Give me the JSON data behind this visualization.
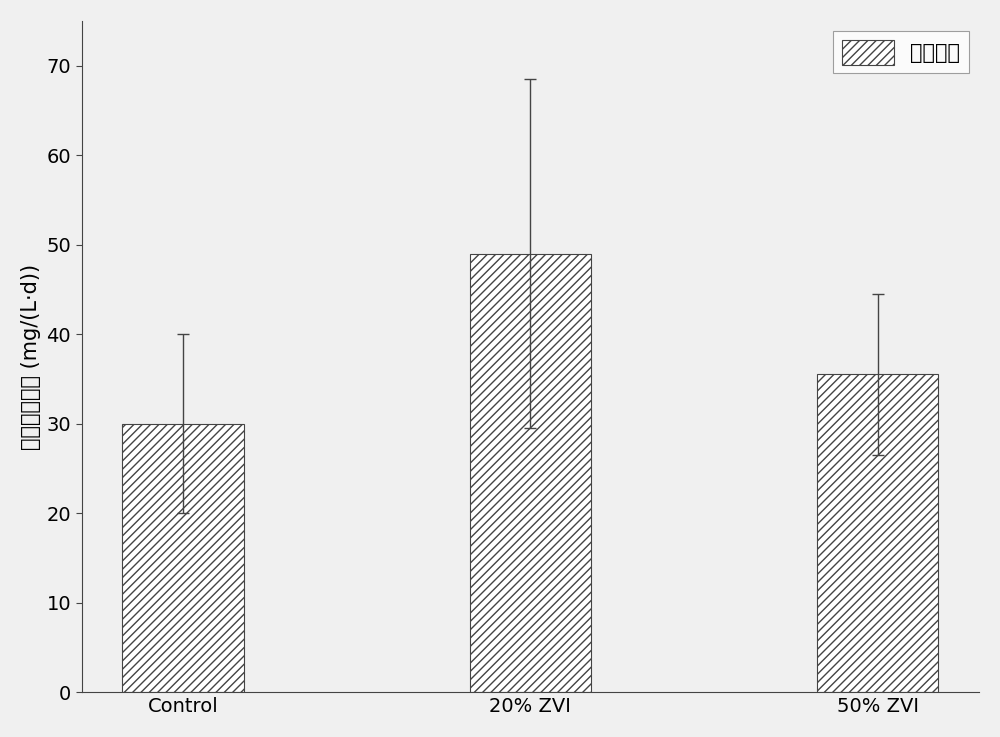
{
  "categories": [
    "Control",
    "20% ZVI",
    "50% ZVI"
  ],
  "values": [
    30.0,
    49.0,
    35.5
  ],
  "errors": [
    10.0,
    19.5,
    9.0
  ],
  "bar_width": 0.35,
  "bar_color": "white",
  "bar_edgecolor": "#444444",
  "hatch": "////",
  "ylabel": "平均降解速率 (mg/(L·d))",
  "ylim": [
    0,
    75
  ],
  "yticks": [
    0,
    10,
    20,
    30,
    40,
    50,
    60,
    70
  ],
  "legend_label": "运行阶段",
  "error_capsize": 4,
  "error_color": "#444444",
  "background_color": "#f0f0f0",
  "label_fontsize": 15,
  "tick_fontsize": 14,
  "legend_fontsize": 15
}
